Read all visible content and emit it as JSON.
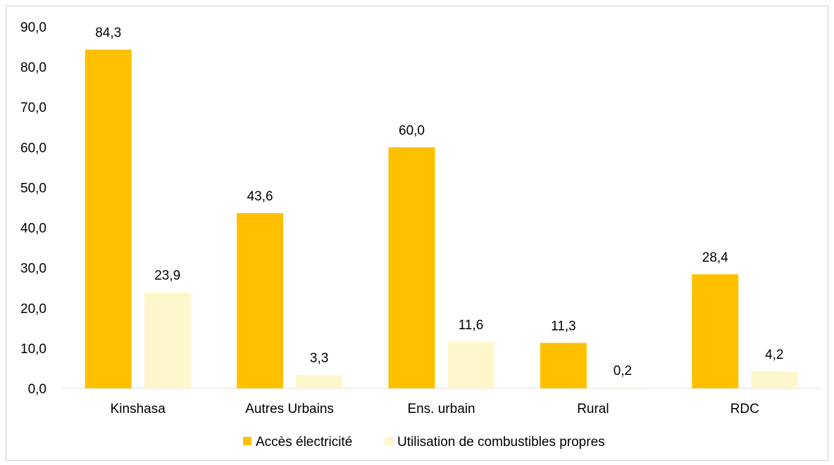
{
  "chart_data": {
    "type": "bar",
    "title": "",
    "xlabel": "",
    "ylabel": "",
    "categories": [
      "Kinshasa",
      "Autres Urbains",
      "Ens. urbain",
      "Rural",
      "RDC"
    ],
    "series": [
      {
        "name": "Accès électricité",
        "color": "#FFC000",
        "values": [
          84.3,
          43.6,
          60.0,
          11.3,
          28.4
        ],
        "labels": [
          "84,3",
          "43,6",
          "60,0",
          "11,3",
          "28,4"
        ]
      },
      {
        "name": "Utilisation de combustibles propres",
        "color": "#FFF7CC",
        "values": [
          23.9,
          3.3,
          11.6,
          0.2,
          4.2
        ],
        "labels": [
          "23,9",
          "3,3",
          "11,6",
          "0,2",
          "4,2"
        ]
      }
    ],
    "ylim": [
      0,
      90
    ],
    "yticks": [
      0,
      10,
      20,
      30,
      40,
      50,
      60,
      70,
      80,
      90
    ],
    "ytick_labels": [
      "0,0",
      "10,0",
      "20,0",
      "30,0",
      "40,0",
      "50,0",
      "60,0",
      "70,0",
      "80,0",
      "90,0"
    ],
    "grid": false,
    "legend_position": "bottom"
  }
}
